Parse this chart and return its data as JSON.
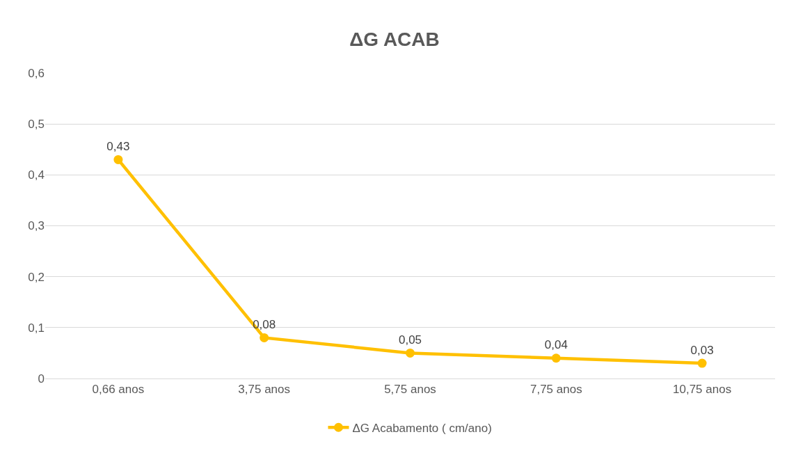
{
  "chart_data": {
    "type": "line",
    "title": "ΔG ACAB",
    "categories": [
      "0,66 anos",
      "3,75 anos",
      "5,75 anos",
      "7,75 anos",
      "10,75 anos"
    ],
    "series": [
      {
        "name": "ΔG Acabamento ( cm/ano)",
        "color": "#ffc000",
        "values": [
          0.43,
          0.08,
          0.05,
          0.04,
          0.03
        ],
        "value_labels": [
          "0,43",
          "0,08",
          "0,05",
          "0,04",
          "0,03"
        ]
      }
    ],
    "ylim": [
      0,
      0.6
    ],
    "yticks": [
      0,
      {
        "value": 0.1,
        "label": "0,1"
      },
      {
        "value": 0.2,
        "label": "0,2"
      },
      {
        "value": 0.3,
        "label": "0,3"
      },
      {
        "value": 0.4,
        "label": "0,4"
      },
      {
        "value": 0.5,
        "label": "0,5"
      },
      {
        "value": 0.6,
        "label": "0,6"
      }
    ],
    "grid": "y",
    "legend": "bottom",
    "marker": "circle",
    "line_style": "solid"
  }
}
